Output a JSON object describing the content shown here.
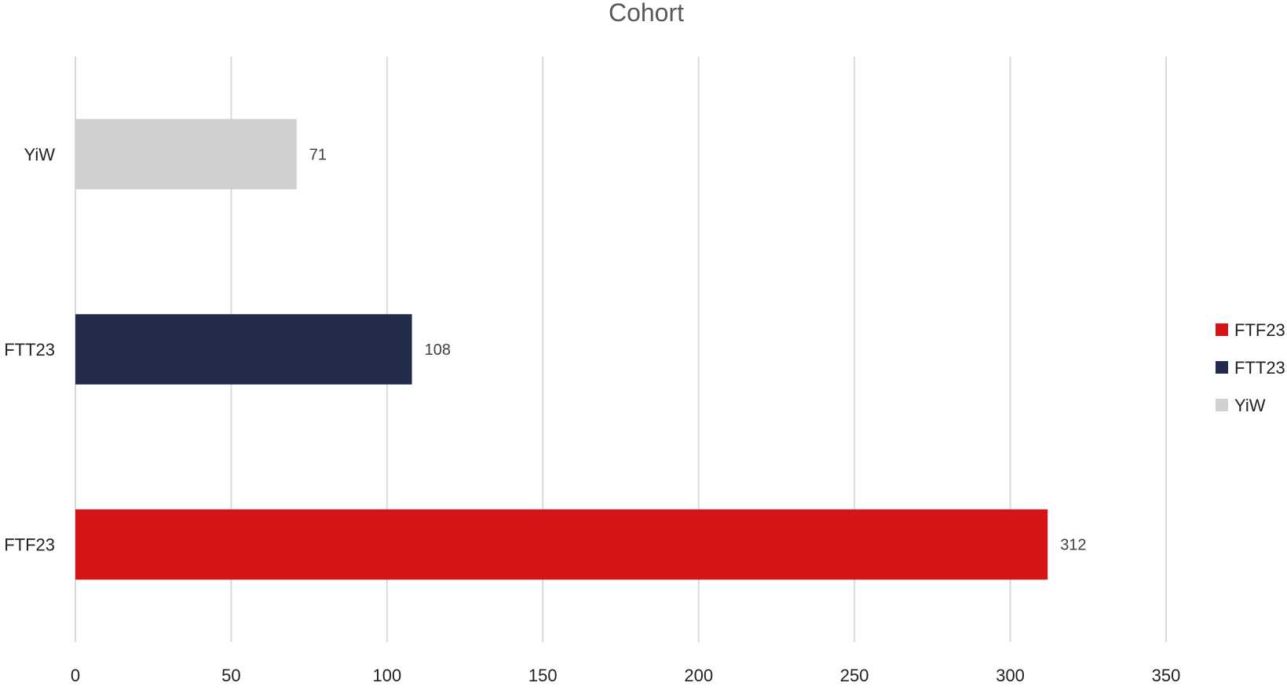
{
  "chart_data": {
    "type": "bar",
    "orientation": "horizontal",
    "title": "Cohort",
    "categories": [
      "FTF23",
      "FTT23",
      "YiW"
    ],
    "values": [
      312,
      108,
      71
    ],
    "colors": [
      "#D41417",
      "#232B4A",
      "#D0D0D0"
    ],
    "xlim": [
      0,
      350
    ],
    "xticks": [
      0,
      50,
      100,
      150,
      200,
      250,
      300,
      350
    ],
    "xlabel": "",
    "ylabel": "",
    "grid": "vertical",
    "legend": {
      "position": "right",
      "entries": [
        "FTF23",
        "FTT23",
        "YiW"
      ]
    },
    "data_labels": [
      "312",
      "108",
      "71"
    ]
  }
}
